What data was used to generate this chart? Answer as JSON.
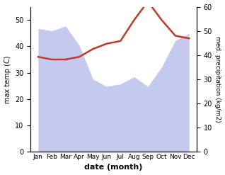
{
  "months": [
    "Jan",
    "Feb",
    "Mar",
    "Apr",
    "May",
    "Jun",
    "Jul",
    "Aug",
    "Sep",
    "Oct",
    "Nov",
    "Dec"
  ],
  "max_temp": [
    36,
    35,
    35,
    36,
    39,
    41,
    42,
    50,
    57,
    50,
    44,
    43
  ],
  "precipitation": [
    51,
    50,
    52,
    44,
    30,
    27,
    28,
    31,
    27,
    35,
    46,
    49
  ],
  "precip_color": "#c0392b",
  "fill_color": "#aab4e8",
  "fill_alpha": 0.7,
  "temp_color": "#9b3a5a",
  "xlabel": "date (month)",
  "ylabel_left": "max temp (C)",
  "ylabel_right": "med. precipitation (kg/m2)",
  "ylim_left": [
    0,
    55
  ],
  "ylim_right": [
    0,
    60
  ],
  "yticks_left": [
    0,
    10,
    20,
    30,
    40,
    50
  ],
  "yticks_right": [
    0,
    10,
    20,
    30,
    40,
    50,
    60
  ],
  "background_color": "#ffffff"
}
